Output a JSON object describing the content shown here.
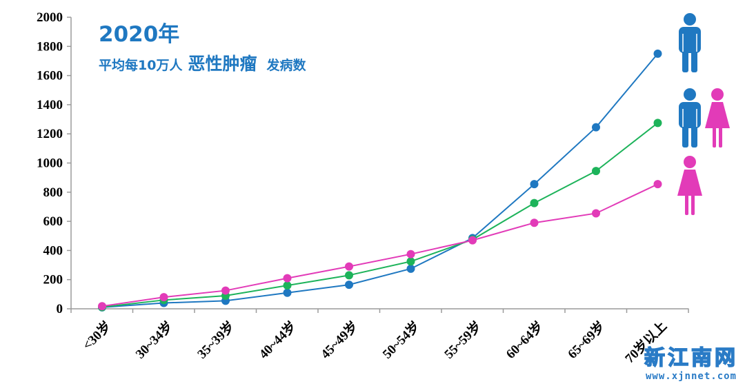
{
  "title": "2020年",
  "subtitle": {
    "part1": "平均每10万人",
    "part2": "恶性肿瘤",
    "part3": "发病数"
  },
  "watermark": {
    "main": "新江南网",
    "url": "www.xjnnet.com"
  },
  "chart_data": {
    "type": "line",
    "categories": [
      "<30岁",
      "30~34岁",
      "35~39岁",
      "40~44岁",
      "45~49岁",
      "50~54岁",
      "55~59岁",
      "60~64岁",
      "65~69岁",
      "70岁以上"
    ],
    "ylim": [
      0,
      2000
    ],
    "yticks": [
      0,
      200,
      400,
      600,
      800,
      1000,
      1200,
      1400,
      1600,
      1800,
      2000
    ],
    "grid": false,
    "series": [
      {
        "color": "#1f78c1",
        "icon": "male-icon",
        "values": [
          10,
          40,
          55,
          110,
          165,
          275,
          485,
          855,
          1245,
          1750
        ]
      },
      {
        "color": "#1db35a",
        "icon": "male-female-icon",
        "values": [
          12,
          60,
          90,
          160,
          230,
          325,
          475,
          725,
          945,
          1275
        ]
      },
      {
        "color": "#e23bb8",
        "icon": "female-icon",
        "values": [
          18,
          80,
          125,
          210,
          290,
          375,
          470,
          590,
          655,
          855
        ]
      }
    ]
  }
}
